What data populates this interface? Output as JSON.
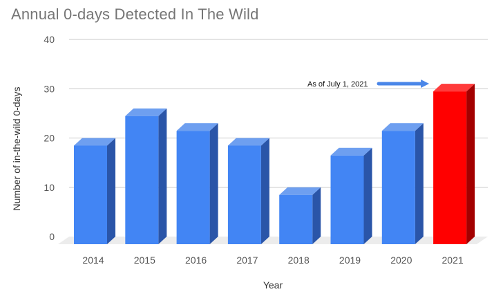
{
  "chart_data": {
    "type": "bar",
    "title": "Annual 0-days Detected In The Wild",
    "xlabel": "Year",
    "ylabel": "Number of in-the-wild 0-days",
    "categories": [
      "2014",
      "2015",
      "2016",
      "2017",
      "2018",
      "2019",
      "2020",
      "2021"
    ],
    "values": [
      20,
      26,
      23,
      20,
      10,
      18,
      23,
      31
    ],
    "ylim": [
      0,
      40
    ],
    "yticks": [
      0,
      10,
      20,
      30,
      40
    ],
    "grid": true,
    "legend": "none",
    "bar_color": "#4285f4",
    "bar_side_color": "#2a55a8",
    "bar_top_color": "#6e9ff0",
    "highlight": {
      "category": "2021",
      "color": "#ff0000",
      "side_color": "#a30000",
      "top_color": "#ff3b3b"
    },
    "annotation": {
      "text": "As of July 1, 2021",
      "target": "2021",
      "arrow_color": "#4a86e8"
    }
  }
}
